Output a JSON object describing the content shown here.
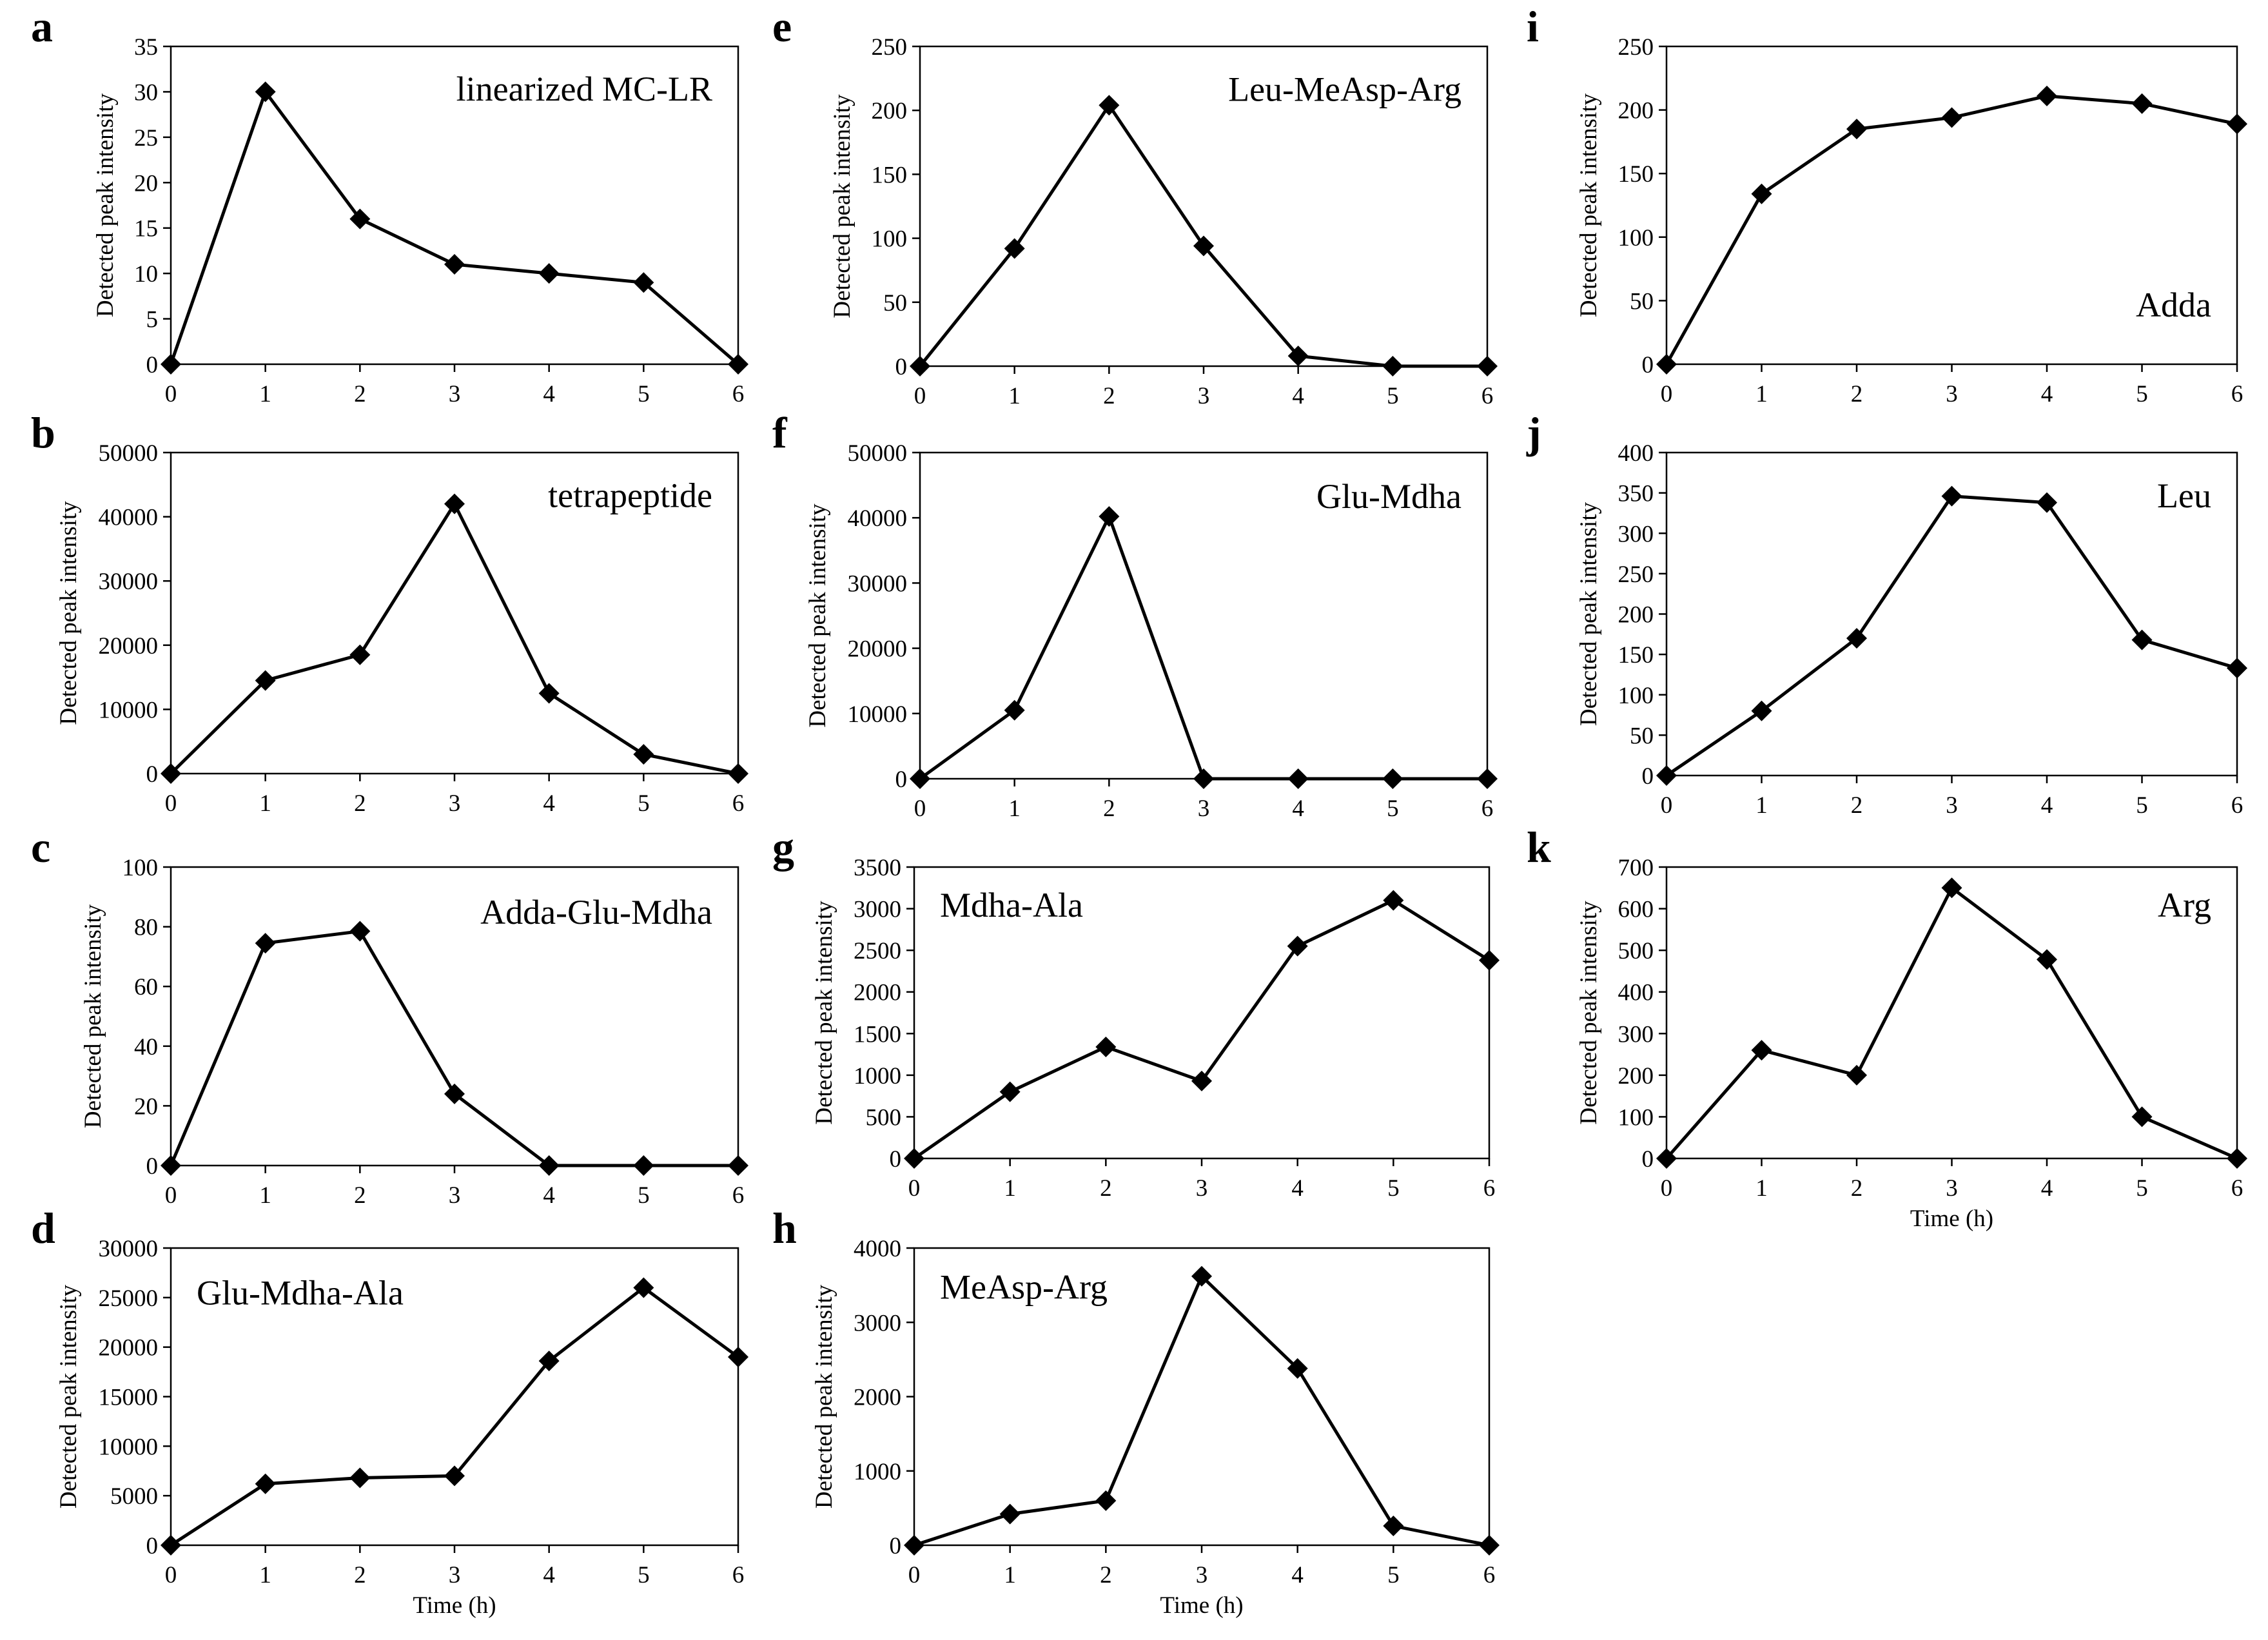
{
  "figure": {
    "background": "#ffffff",
    "line_color": "#000000"
  },
  "chart_data": [
    {
      "letter": "a",
      "type": "line",
      "title": "linearized MC-LR",
      "x": [
        0,
        1,
        2,
        3,
        4,
        5,
        6
      ],
      "values": [
        0,
        30,
        16,
        11,
        10,
        9,
        0
      ],
      "ylim": [
        0,
        35
      ],
      "yticks": [
        0,
        5,
        10,
        15,
        20,
        25,
        30,
        35
      ],
      "ylabel": "Detected peak intensity",
      "xlabel": "",
      "marker": "diamond"
    },
    {
      "letter": "b",
      "type": "line",
      "title": "tetrapeptide",
      "x": [
        0,
        1,
        2,
        3,
        4,
        5,
        6
      ],
      "values": [
        0,
        14500,
        18500,
        42000,
        12500,
        3000,
        0
      ],
      "ylim": [
        0,
        50000
      ],
      "yticks": [
        0,
        10000,
        20000,
        30000,
        40000,
        50000
      ],
      "ylabel": "Detected peak intensity",
      "xlabel": "",
      "marker": "diamond"
    },
    {
      "letter": "c",
      "type": "line",
      "title": "Adda-Glu-Mdha",
      "x": [
        0,
        1,
        2,
        3,
        4,
        5,
        6
      ],
      "values": [
        0,
        74.5,
        78.5,
        24,
        0,
        0,
        0
      ],
      "ylim": [
        0,
        100
      ],
      "yticks": [
        0,
        20,
        40,
        60,
        80,
        100
      ],
      "ylabel": "Detected peak intensity",
      "xlabel": "",
      "marker": "diamond"
    },
    {
      "letter": "d",
      "type": "line",
      "title": "Glu-Mdha-Ala",
      "x": [
        0,
        1,
        2,
        3,
        4,
        5,
        6
      ],
      "values": [
        0,
        6200,
        6800,
        7000,
        18600,
        26000,
        19000
      ],
      "ylim": [
        0,
        30000
      ],
      "yticks": [
        0,
        5000,
        10000,
        15000,
        20000,
        25000,
        30000
      ],
      "ylabel": "Detected peak intensity",
      "xlabel": "Time (h)",
      "marker": "diamond"
    },
    {
      "letter": "e",
      "type": "line",
      "title": "Leu-MeAsp-Arg",
      "x": [
        0,
        1,
        2,
        3,
        4,
        5,
        6
      ],
      "values": [
        0,
        92,
        204,
        94,
        8,
        0,
        0
      ],
      "ylim": [
        0,
        250
      ],
      "yticks": [
        0,
        50,
        100,
        150,
        200,
        250
      ],
      "ylabel": "Detected peak intensity",
      "xlabel": "",
      "marker": "diamond"
    },
    {
      "letter": "f",
      "type": "line",
      "title": "Glu-Mdha",
      "x": [
        0,
        1,
        2,
        3,
        4,
        5,
        6
      ],
      "values": [
        0,
        10500,
        40200,
        0,
        0,
        0,
        0
      ],
      "ylim": [
        0,
        50000
      ],
      "yticks": [
        0,
        10000,
        20000,
        30000,
        40000,
        50000
      ],
      "ylabel": "Detected peak intensity",
      "xlabel": "",
      "marker": "diamond"
    },
    {
      "letter": "g",
      "type": "line",
      "title": "Mdha-Ala",
      "x": [
        0,
        1,
        2,
        3,
        4,
        5,
        6
      ],
      "values": [
        0,
        800,
        1340,
        930,
        2550,
        3100,
        2380
      ],
      "ylim": [
        0,
        3500
      ],
      "yticks": [
        0,
        500,
        1000,
        1500,
        2000,
        2500,
        3000,
        3500
      ],
      "ylabel": "Detected peak intensity",
      "xlabel": "",
      "marker": "diamond"
    },
    {
      "letter": "h",
      "type": "line",
      "title": "MeAsp-Arg",
      "x": [
        0,
        1,
        2,
        3,
        4,
        5,
        6
      ],
      "values": [
        0,
        420,
        600,
        3620,
        2380,
        260,
        0
      ],
      "ylim": [
        0,
        4000
      ],
      "yticks": [
        0,
        1000,
        2000,
        3000,
        4000
      ],
      "ylabel": "Detected peak intensity",
      "xlabel": "Time (h)",
      "marker": "diamond"
    },
    {
      "letter": "i",
      "type": "line",
      "title": "Adda",
      "x": [
        0,
        1,
        2,
        3,
        4,
        5,
        6
      ],
      "values": [
        0,
        134,
        185,
        194,
        211,
        205,
        189
      ],
      "ylim": [
        0,
        250
      ],
      "yticks": [
        0,
        50,
        100,
        150,
        200,
        250
      ],
      "ylabel": "Detected peak intensity",
      "xlabel": "",
      "marker": "diamond"
    },
    {
      "letter": "j",
      "type": "line",
      "title": "Leu",
      "x": [
        0,
        1,
        2,
        3,
        4,
        5,
        6
      ],
      "values": [
        0,
        80,
        170,
        346,
        338,
        168,
        133
      ],
      "ylim": [
        0,
        400
      ],
      "yticks": [
        0,
        50,
        100,
        150,
        200,
        250,
        300,
        350,
        400
      ],
      "ylabel": "Detected peak intensity",
      "xlabel": "",
      "marker": "diamond"
    },
    {
      "letter": "k",
      "type": "line",
      "title": "Arg",
      "x": [
        0,
        1,
        2,
        3,
        4,
        5,
        6
      ],
      "values": [
        0,
        260,
        200,
        650,
        478,
        100,
        0
      ],
      "ylim": [
        0,
        700
      ],
      "yticks": [
        0,
        100,
        200,
        300,
        400,
        500,
        600,
        700
      ],
      "ylabel": "Detected peak intensity",
      "xlabel": "Time (h)",
      "marker": "diamond"
    }
  ]
}
